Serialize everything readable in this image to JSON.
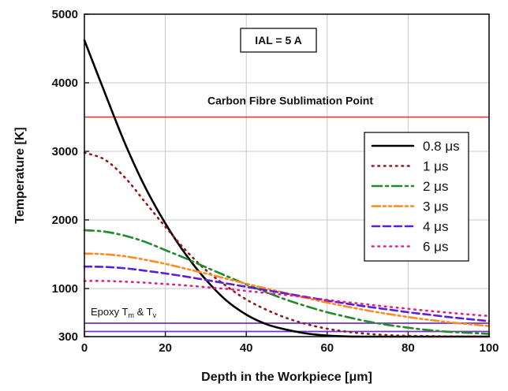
{
  "chart_data": {
    "type": "line",
    "xlabel_prefix": "Depth in the Workpiece [",
    "xlabel_mu": "μ",
    "xlabel_suffix": "m]",
    "ylabel": "Temperature [K]",
    "xlim": [
      0,
      100
    ],
    "ylim": [
      300,
      5000
    ],
    "xticks": [
      0,
      20,
      40,
      60,
      80,
      100
    ],
    "yticks": [
      300,
      1000,
      2000,
      3000,
      4000,
      5000
    ],
    "yticks_labels": [
      "300",
      "1000",
      "2000",
      "3000",
      "4000",
      "5000"
    ],
    "grid": true,
    "legend_position": "right",
    "box_label": "IAL = 5 A",
    "sublimation_label": "Carbon Fibre Sublimation Point",
    "sublimation_value": 3500,
    "sublimation_color": "#e03030",
    "epoxy_label_main": "Epoxy T",
    "epoxy_sub_m": "m",
    "epoxy_amp": " & T",
    "epoxy_sub_v": "v",
    "epoxy_lines": [
      {
        "value": 375,
        "color": "#7a30c8"
      },
      {
        "value": 495,
        "color": "#7a30c8"
      }
    ],
    "series": [
      {
        "name": "0.8 μs",
        "color": "#000000",
        "dash": "solid",
        "width": 2.6,
        "points": [
          [
            0,
            4620
          ],
          [
            5,
            3860
          ],
          [
            10,
            3120
          ],
          [
            15,
            2480
          ],
          [
            20,
            1950
          ],
          [
            25,
            1500
          ],
          [
            30,
            1130
          ],
          [
            35,
            830
          ],
          [
            40,
            620
          ],
          [
            45,
            480
          ],
          [
            50,
            400
          ],
          [
            55,
            345
          ],
          [
            60,
            315
          ],
          [
            65,
            302
          ],
          [
            70,
            300
          ],
          [
            75,
            300
          ],
          [
            80,
            300
          ],
          [
            90,
            300
          ],
          [
            100,
            300
          ]
        ]
      },
      {
        "name": "1 μs",
        "color": "#8b1a1a",
        "dash": "dot",
        "width": 2.6,
        "points": [
          [
            0,
            2980
          ],
          [
            5,
            2880
          ],
          [
            10,
            2620
          ],
          [
            15,
            2260
          ],
          [
            20,
            1900
          ],
          [
            25,
            1560
          ],
          [
            30,
            1270
          ],
          [
            35,
            1040
          ],
          [
            40,
            840
          ],
          [
            45,
            690
          ],
          [
            50,
            570
          ],
          [
            55,
            480
          ],
          [
            60,
            415
          ],
          [
            65,
            370
          ],
          [
            70,
            340
          ],
          [
            75,
            322
          ],
          [
            80,
            312
          ],
          [
            90,
            304
          ],
          [
            100,
            302
          ]
        ]
      },
      {
        "name": "2 μs",
        "color": "#1f8b2a",
        "dash": "dashdot",
        "width": 2.6,
        "points": [
          [
            0,
            1850
          ],
          [
            5,
            1830
          ],
          [
            10,
            1770
          ],
          [
            15,
            1680
          ],
          [
            20,
            1560
          ],
          [
            25,
            1440
          ],
          [
            30,
            1310
          ],
          [
            35,
            1185
          ],
          [
            40,
            1060
          ],
          [
            45,
            945
          ],
          [
            50,
            835
          ],
          [
            55,
            740
          ],
          [
            60,
            655
          ],
          [
            65,
            585
          ],
          [
            70,
            520
          ],
          [
            75,
            470
          ],
          [
            80,
            430
          ],
          [
            85,
            395
          ],
          [
            90,
            370
          ],
          [
            95,
            355
          ],
          [
            100,
            340
          ]
        ]
      },
      {
        "name": "3 μs",
        "color": "#ff8a1e",
        "dash": "dashdotdot",
        "width": 2.6,
        "points": [
          [
            0,
            1510
          ],
          [
            5,
            1500
          ],
          [
            10,
            1470
          ],
          [
            15,
            1420
          ],
          [
            20,
            1360
          ],
          [
            25,
            1290
          ],
          [
            30,
            1220
          ],
          [
            35,
            1145
          ],
          [
            40,
            1070
          ],
          [
            45,
            1000
          ],
          [
            50,
            930
          ],
          [
            55,
            860
          ],
          [
            60,
            795
          ],
          [
            65,
            735
          ],
          [
            70,
            680
          ],
          [
            75,
            630
          ],
          [
            80,
            585
          ],
          [
            85,
            545
          ],
          [
            90,
            510
          ],
          [
            95,
            480
          ],
          [
            100,
            455
          ]
        ]
      },
      {
        "name": "4 μs",
        "color": "#5a1fd6",
        "dash": "dash",
        "width": 2.6,
        "points": [
          [
            0,
            1320
          ],
          [
            5,
            1315
          ],
          [
            10,
            1295
          ],
          [
            15,
            1260
          ],
          [
            20,
            1220
          ],
          [
            25,
            1175
          ],
          [
            30,
            1125
          ],
          [
            35,
            1075
          ],
          [
            40,
            1025
          ],
          [
            45,
            975
          ],
          [
            50,
            925
          ],
          [
            55,
            875
          ],
          [
            60,
            825
          ],
          [
            65,
            778
          ],
          [
            70,
            735
          ],
          [
            75,
            695
          ],
          [
            80,
            655
          ],
          [
            85,
            620
          ],
          [
            90,
            585
          ],
          [
            95,
            555
          ],
          [
            100,
            525
          ]
        ]
      },
      {
        "name": "6 μs",
        "color": "#e0208a",
        "dash": "dot",
        "width": 2.6,
        "points": [
          [
            0,
            1110
          ],
          [
            5,
            1110
          ],
          [
            10,
            1100
          ],
          [
            15,
            1085
          ],
          [
            20,
            1065
          ],
          [
            25,
            1045
          ],
          [
            30,
            1020
          ],
          [
            35,
            995
          ],
          [
            40,
            965
          ],
          [
            45,
            935
          ],
          [
            50,
            905
          ],
          [
            55,
            870
          ],
          [
            60,
            835
          ],
          [
            65,
            800
          ],
          [
            70,
            768
          ],
          [
            75,
            735
          ],
          [
            80,
            705
          ],
          [
            85,
            675
          ],
          [
            90,
            648
          ],
          [
            95,
            622
          ],
          [
            100,
            600
          ]
        ]
      }
    ]
  }
}
